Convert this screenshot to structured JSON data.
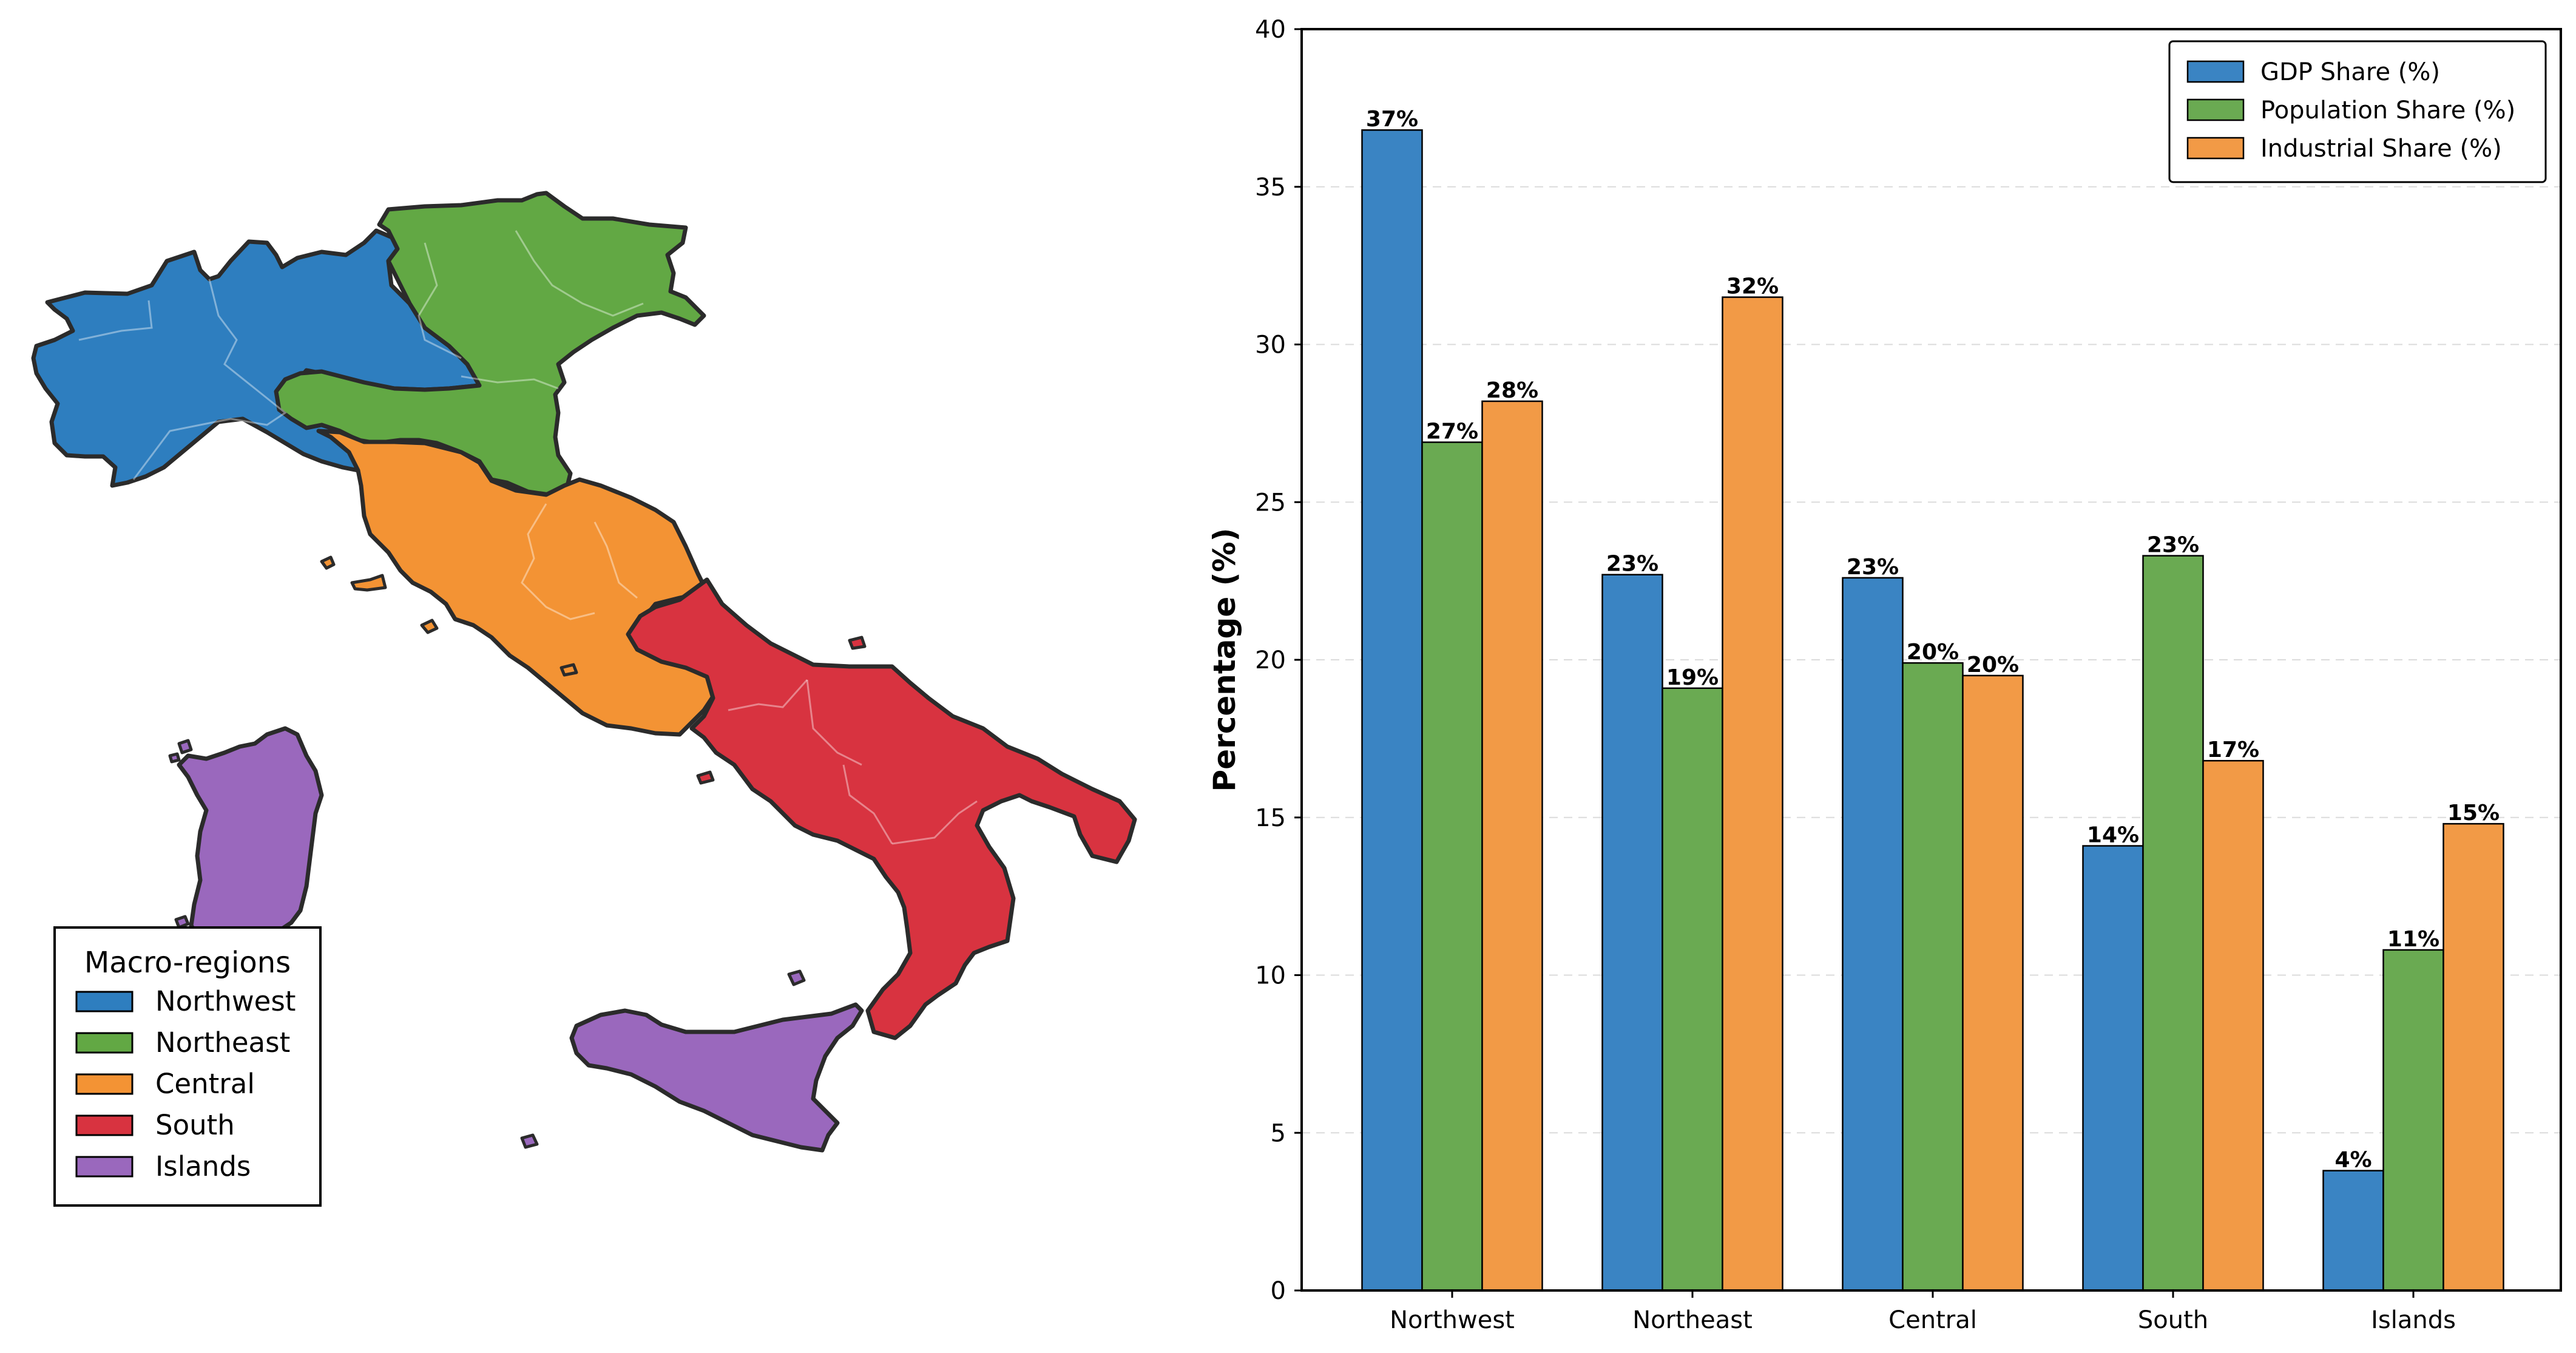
{
  "map": {
    "legend_title": "Macro-regions",
    "regions": [
      {
        "name": "Northwest",
        "color": "#2e7ebf"
      },
      {
        "name": "Northeast",
        "color": "#62a844"
      },
      {
        "name": "Central",
        "color": "#f39334"
      },
      {
        "name": "South",
        "color": "#d83340"
      },
      {
        "name": "Islands",
        "color": "#9a68bd"
      }
    ],
    "outline_color": "#2b2b2b"
  },
  "chart_data": {
    "type": "bar",
    "categories": [
      "Northwest",
      "Northeast",
      "Central",
      "South",
      "Islands"
    ],
    "series": [
      {
        "name": "GDP Share (%)",
        "color": "#3a84c3",
        "values": [
          36.8,
          22.7,
          22.6,
          14.1,
          3.8
        ],
        "labels": [
          "37%",
          "23%",
          "23%",
          "14%",
          "4%"
        ]
      },
      {
        "name": "Population Share (%)",
        "color": "#6aaa52",
        "values": [
          26.9,
          19.1,
          19.9,
          23.3,
          10.8
        ],
        "labels": [
          "27%",
          "19%",
          "20%",
          "23%",
          "11%"
        ]
      },
      {
        "name": "Industrial Share (%)",
        "color": "#f29a46",
        "values": [
          28.2,
          31.5,
          19.5,
          16.8,
          14.8
        ],
        "labels": [
          "28%",
          "32%",
          "20%",
          "17%",
          "15%"
        ]
      }
    ],
    "xlabel": "",
    "ylabel": "Percentage (%)",
    "ylim": [
      0,
      40
    ],
    "yticks": [
      0,
      5,
      10,
      15,
      20,
      25,
      30,
      35,
      40
    ],
    "grid": "horizontal dashed",
    "legend_position": "top-right"
  }
}
